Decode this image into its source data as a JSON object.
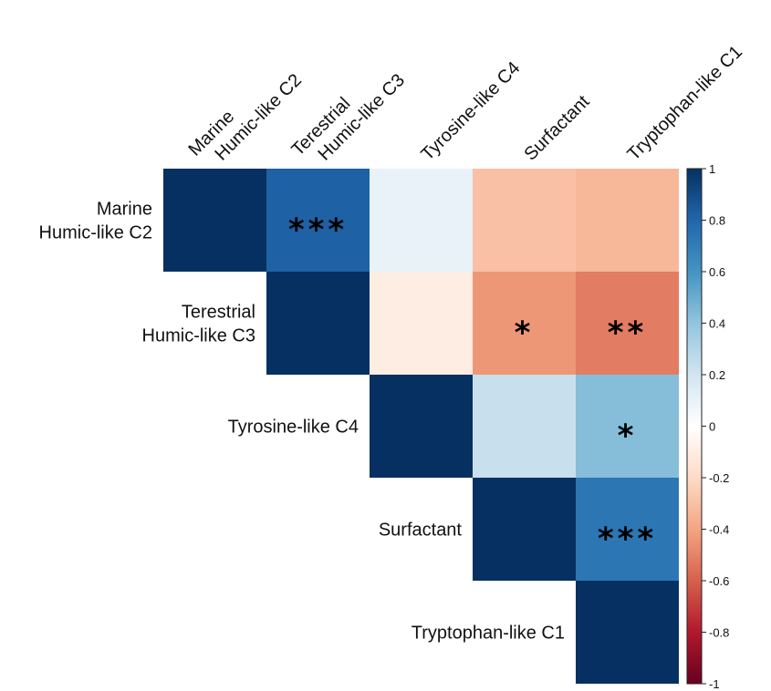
{
  "chart_data": {
    "type": "heatmap",
    "layout": "upper-triangle correlation matrix",
    "variables": [
      "Marine Humic-like C2",
      "Terestrial Humic-like C3",
      "Tyrosine-like C4",
      "Surfactant",
      "Tryptophan-like C1"
    ],
    "row_labels": [
      [
        "Marine",
        "Humic-like C2"
      ],
      [
        "Terestrial",
        "Humic-like C3"
      ],
      [
        "Tyrosine-like C4"
      ],
      [
        "Surfactant"
      ],
      [
        "Tryptophan-like C1"
      ]
    ],
    "column_labels": [
      [
        "Marine",
        "Humic-like C2"
      ],
      [
        "Terestrial",
        "Humic-like C3"
      ],
      [
        "Tyrosine-like C4"
      ],
      [
        "Surfactant"
      ],
      [
        "Tryptophan-like C1"
      ]
    ],
    "cells": [
      {
        "row": 0,
        "col": 0,
        "value": 1.0,
        "sig": ""
      },
      {
        "row": 0,
        "col": 1,
        "value": 0.82,
        "sig": "***"
      },
      {
        "row": 0,
        "col": 2,
        "value": 0.1,
        "sig": ""
      },
      {
        "row": 0,
        "col": 3,
        "value": -0.3,
        "sig": ""
      },
      {
        "row": 0,
        "col": 4,
        "value": -0.33,
        "sig": ""
      },
      {
        "row": 1,
        "col": 1,
        "value": 1.0,
        "sig": ""
      },
      {
        "row": 1,
        "col": 2,
        "value": -0.1,
        "sig": ""
      },
      {
        "row": 1,
        "col": 3,
        "value": -0.44,
        "sig": "*"
      },
      {
        "row": 1,
        "col": 4,
        "value": -0.52,
        "sig": "**"
      },
      {
        "row": 2,
        "col": 2,
        "value": 1.0,
        "sig": ""
      },
      {
        "row": 2,
        "col": 3,
        "value": 0.23,
        "sig": ""
      },
      {
        "row": 2,
        "col": 4,
        "value": 0.43,
        "sig": "*"
      },
      {
        "row": 3,
        "col": 3,
        "value": 1.0,
        "sig": ""
      },
      {
        "row": 3,
        "col": 4,
        "value": 0.73,
        "sig": "***"
      },
      {
        "row": 4,
        "col": 4,
        "value": 1.0,
        "sig": ""
      }
    ],
    "colorbar": {
      "range": [
        -1,
        1
      ],
      "ticks": [
        "1",
        "0.8",
        "0.6",
        "0.4",
        "0.2",
        "0",
        "-0.2",
        "-0.4",
        "-0.6",
        "-0.8",
        "-1"
      ],
      "tick_values": [
        1,
        0.8,
        0.6,
        0.4,
        0.2,
        0,
        -0.2,
        -0.4,
        -0.6,
        -0.8,
        -1
      ],
      "colormap": "RdBu",
      "low_color": "#67001f",
      "mid_color": "#ffffff",
      "high_color": "#053061"
    },
    "title": "",
    "xlabel": "",
    "ylabel": ""
  }
}
